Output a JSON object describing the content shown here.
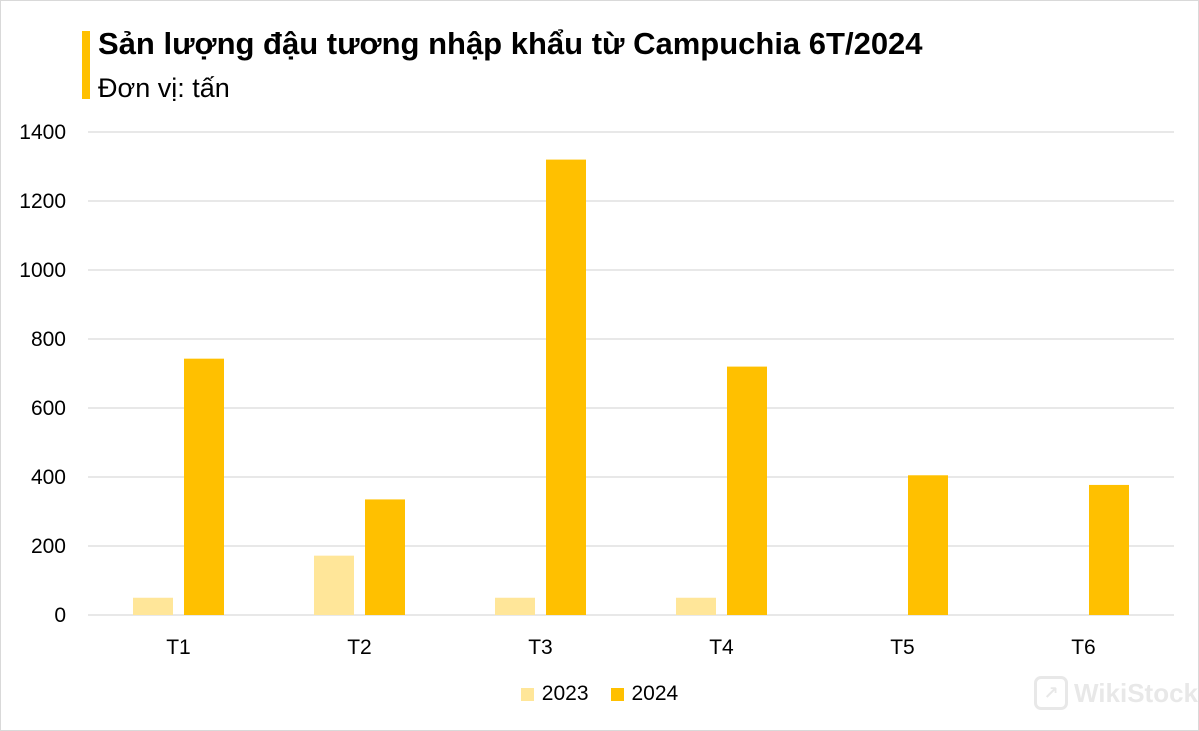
{
  "chart_data": {
    "type": "bar",
    "title": "Sản lượng đậu tương nhập khẩu từ Campuchia 6T/2024",
    "subtitle": "Đơn vị: tấn",
    "categories": [
      "T1",
      "T2",
      "T3",
      "T4",
      "T5",
      "T6"
    ],
    "series": [
      {
        "name": "2023",
        "values": [
          50,
          172,
          50,
          50,
          null,
          null
        ],
        "color": "#FFE699"
      },
      {
        "name": "2024",
        "values": [
          743,
          335,
          1320,
          720,
          405,
          377
        ],
        "color": "#FFC000"
      }
    ],
    "ylim": [
      0,
      1400
    ],
    "yticks": [
      "0",
      "200",
      "400",
      "600",
      "800",
      "1000",
      "1200",
      "1400"
    ],
    "grid": true,
    "legend_position": "bottom",
    "accent_color": "#FFC000"
  },
  "watermark": {
    "text": "WikiStock",
    "icon": "wikistock-logo-icon"
  }
}
